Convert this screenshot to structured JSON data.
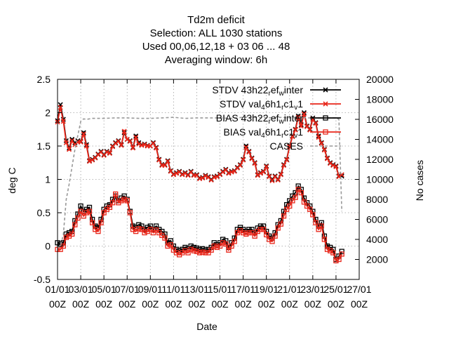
{
  "chart_data": {
    "type": "line",
    "title": "Td2m deficit",
    "subtitle_lines": [
      "Selection: ALL   1030 stations",
      "Used  00,06,12,18  + 03 06 ... 48",
      "Averaging window:  6h"
    ],
    "xlabel": "Date",
    "ylabel": "deg C",
    "y2label": "No cases",
    "xlim": [
      1,
      27
    ],
    "ylim": [
      -0.5,
      2.5
    ],
    "y2lim": [
      0,
      20000
    ],
    "xticks": [
      {
        "x": 1,
        "line1": "01/01",
        "line2": "00Z"
      },
      {
        "x": 3,
        "line1": "03/01",
        "line2": "00Z"
      },
      {
        "x": 5,
        "line1": "05/01",
        "line2": "00Z"
      },
      {
        "x": 7,
        "line1": "07/01",
        "line2": "00Z"
      },
      {
        "x": 9,
        "line1": "09/01",
        "line2": "00Z"
      },
      {
        "x": 11,
        "line1": "11/01",
        "line2": "00Z"
      },
      {
        "x": 13,
        "line1": "13/01",
        "line2": "00Z"
      },
      {
        "x": 15,
        "line1": "15/01",
        "line2": "00Z"
      },
      {
        "x": 17,
        "line1": "17/01",
        "line2": "00Z"
      },
      {
        "x": 19,
        "line1": "19/01",
        "line2": "00Z"
      },
      {
        "x": 21,
        "line1": "21/01",
        "line2": "00Z"
      },
      {
        "x": 23,
        "line1": "23/01",
        "line2": "00Z"
      },
      {
        "x": 25,
        "line1": "25/01",
        "line2": "00Z"
      },
      {
        "x": 27,
        "line1": "27/01",
        "line2": "00Z"
      }
    ],
    "yticks": [
      "-0.5",
      "0",
      "0.5",
      "1",
      "1.5",
      "2",
      "2.5"
    ],
    "y2ticks": [
      "2000",
      "4000",
      "6000",
      "8000",
      "10000",
      "12000",
      "14000",
      "16000",
      "18000",
      "20000"
    ],
    "grid": true,
    "legend_position": "top-right",
    "series": [
      {
        "name": "STDV 43h22_ref_winter",
        "name_parts": [
          [
            "t",
            "STDV 43h22"
          ],
          [
            "sub",
            "r"
          ],
          [
            "t",
            "ef"
          ],
          [
            "sub",
            "w"
          ],
          [
            "t",
            "inter"
          ]
        ],
        "axis": "y1",
        "color": "#000000",
        "marker": "x",
        "x": [
          1.0,
          1.25,
          1.5,
          1.75,
          2.0,
          2.25,
          2.5,
          2.75,
          3.0,
          3.25,
          3.5,
          3.75,
          4.0,
          4.25,
          4.5,
          4.75,
          5.0,
          5.25,
          5.5,
          5.75,
          6.0,
          6.25,
          6.5,
          6.75,
          7.0,
          7.25,
          7.5,
          7.75,
          8.0,
          8.25,
          8.5,
          8.75,
          9.0,
          9.25,
          9.5,
          9.75,
          10.0,
          10.25,
          10.5,
          10.75,
          11.0,
          11.25,
          11.5,
          11.75,
          12.0,
          12.25,
          12.5,
          12.75,
          13.0,
          13.25,
          13.5,
          13.75,
          14.0,
          14.25,
          14.5,
          14.75,
          15.0,
          15.25,
          15.5,
          15.75,
          16.0,
          16.25,
          16.5,
          16.75,
          17.0,
          17.25,
          17.5,
          17.75,
          18.0,
          18.25,
          18.5,
          18.75,
          19.0,
          19.25,
          19.5,
          19.75,
          20.0,
          20.25,
          20.5,
          20.75,
          21.0,
          21.25,
          21.5,
          21.75,
          22.0,
          22.25,
          22.5,
          22.75,
          23.0,
          23.25,
          23.5,
          23.75,
          24.0,
          24.25,
          24.5,
          24.75,
          25.0,
          25.25,
          25.5
        ],
        "values": [
          1.88,
          2.12,
          1.9,
          1.58,
          1.47,
          1.6,
          1.55,
          1.58,
          1.57,
          1.7,
          1.52,
          1.28,
          1.3,
          1.33,
          1.38,
          1.42,
          1.37,
          1.42,
          1.4,
          1.5,
          1.55,
          1.58,
          1.52,
          1.7,
          1.6,
          1.58,
          1.48,
          1.65,
          1.55,
          1.52,
          1.53,
          1.51,
          1.5,
          1.55,
          1.48,
          1.3,
          1.22,
          1.22,
          1.28,
          1.13,
          1.08,
          1.1,
          1.12,
          1.08,
          1.1,
          1.07,
          1.12,
          1.07,
          1.07,
          1.02,
          1.03,
          1.06,
          1.04,
          1.0,
          1.04,
          1.05,
          1.08,
          1.12,
          1.15,
          1.1,
          1.12,
          1.13,
          1.18,
          1.22,
          1.3,
          1.5,
          1.42,
          1.32,
          1.25,
          1.07,
          1.1,
          1.12,
          1.2,
          1.05,
          1.0,
          1.05,
          1.0,
          1.08,
          1.22,
          1.3,
          1.5,
          1.65,
          1.75,
          1.95,
          1.82,
          2.0,
          1.8,
          1.75,
          1.92,
          1.85,
          1.65,
          1.55,
          1.45,
          1.32,
          1.25,
          1.22,
          1.2,
          1.05,
          1.05
        ]
      },
      {
        "name": "STDV val_46h1_rc1_v1",
        "name_parts": [
          [
            "t",
            "STDV val"
          ],
          [
            "sub",
            "4"
          ],
          [
            "t",
            "6h1"
          ],
          [
            "sub",
            "r"
          ],
          [
            "t",
            "c1"
          ],
          [
            "sub",
            "v"
          ],
          [
            "t",
            "1"
          ]
        ],
        "axis": "y1",
        "color": "#e8261a",
        "marker": "x",
        "x": [
          1.0,
          1.25,
          1.5,
          1.75,
          2.0,
          2.25,
          2.5,
          2.75,
          3.0,
          3.25,
          3.5,
          3.75,
          4.0,
          4.25,
          4.5,
          4.75,
          5.0,
          5.25,
          5.5,
          5.75,
          6.0,
          6.25,
          6.5,
          6.75,
          7.0,
          7.25,
          7.5,
          7.75,
          8.0,
          8.25,
          8.5,
          8.75,
          9.0,
          9.25,
          9.5,
          9.75,
          10.0,
          10.25,
          10.5,
          10.75,
          11.0,
          11.25,
          11.5,
          11.75,
          12.0,
          12.25,
          12.5,
          12.75,
          13.0,
          13.25,
          13.5,
          13.75,
          14.0,
          14.25,
          14.5,
          14.75,
          15.0,
          15.25,
          15.5,
          15.75,
          16.0,
          16.25,
          16.5,
          16.75,
          17.0,
          17.25,
          17.5,
          17.75,
          18.0,
          18.25,
          18.5,
          18.75,
          19.0,
          19.25,
          19.5,
          19.75,
          20.0,
          20.25,
          20.5,
          20.75,
          21.0,
          21.25,
          21.5,
          21.75,
          22.0,
          22.25,
          22.5,
          22.75,
          23.0,
          23.25,
          23.5,
          23.75,
          24.0,
          24.25,
          24.5,
          24.75,
          25.0,
          25.25,
          25.5
        ],
        "values": [
          1.86,
          2.08,
          1.87,
          1.55,
          1.45,
          1.58,
          1.52,
          1.56,
          1.56,
          1.68,
          1.5,
          1.27,
          1.29,
          1.32,
          1.37,
          1.41,
          1.36,
          1.41,
          1.39,
          1.49,
          1.54,
          1.57,
          1.51,
          1.72,
          1.6,
          1.57,
          1.47,
          1.63,
          1.53,
          1.51,
          1.52,
          1.5,
          1.5,
          1.54,
          1.47,
          1.29,
          1.21,
          1.21,
          1.27,
          1.12,
          1.07,
          1.09,
          1.11,
          1.07,
          1.09,
          1.06,
          1.11,
          1.06,
          1.06,
          1.01,
          1.02,
          1.05,
          1.03,
          0.99,
          1.03,
          1.04,
          1.07,
          1.11,
          1.14,
          1.09,
          1.11,
          1.12,
          1.17,
          1.21,
          1.29,
          1.48,
          1.41,
          1.31,
          1.24,
          1.06,
          1.09,
          1.11,
          1.19,
          1.04,
          0.98,
          1.04,
          0.99,
          1.07,
          1.21,
          1.29,
          1.49,
          1.64,
          1.74,
          1.93,
          1.8,
          1.98,
          1.79,
          1.74,
          1.9,
          1.84,
          1.63,
          1.54,
          1.44,
          1.31,
          1.24,
          1.21,
          1.19,
          1.04,
          1.07
        ]
      },
      {
        "name": "BIAS 43h22_ref_winter",
        "name_parts": [
          [
            "t",
            "BIAS 43h22"
          ],
          [
            "sub",
            "r"
          ],
          [
            "t",
            "ef"
          ],
          [
            "sub",
            "w"
          ],
          [
            "t",
            "inter"
          ]
        ],
        "axis": "y1",
        "color": "#000000",
        "marker": "square",
        "x": [
          1.0,
          1.25,
          1.5,
          1.75,
          2.0,
          2.25,
          2.5,
          2.75,
          3.0,
          3.25,
          3.5,
          3.75,
          4.0,
          4.25,
          4.5,
          4.75,
          5.0,
          5.25,
          5.5,
          5.75,
          6.0,
          6.25,
          6.5,
          6.75,
          7.0,
          7.25,
          7.5,
          7.75,
          8.0,
          8.25,
          8.5,
          8.75,
          9.0,
          9.25,
          9.5,
          9.75,
          10.0,
          10.25,
          10.5,
          10.75,
          11.0,
          11.25,
          11.5,
          11.75,
          12.0,
          12.25,
          12.5,
          12.75,
          13.0,
          13.25,
          13.5,
          13.75,
          14.0,
          14.25,
          14.5,
          14.75,
          15.0,
          15.25,
          15.5,
          15.75,
          16.0,
          16.25,
          16.5,
          16.75,
          17.0,
          17.25,
          17.5,
          17.75,
          18.0,
          18.25,
          18.5,
          18.75,
          19.0,
          19.25,
          19.5,
          19.75,
          20.0,
          20.25,
          20.5,
          20.75,
          21.0,
          21.25,
          21.5,
          21.75,
          22.0,
          22.25,
          22.5,
          22.75,
          23.0,
          23.25,
          23.5,
          23.75,
          24.0,
          24.25,
          24.5,
          24.75,
          25.0,
          25.25,
          25.5
        ],
        "values": [
          0.05,
          0.03,
          0.05,
          0.18,
          0.2,
          0.22,
          0.38,
          0.48,
          0.6,
          0.52,
          0.55,
          0.58,
          0.4,
          0.3,
          0.28,
          0.4,
          0.55,
          0.6,
          0.62,
          0.7,
          0.75,
          0.68,
          0.72,
          0.75,
          0.7,
          0.52,
          0.3,
          0.28,
          0.32,
          0.3,
          0.25,
          0.28,
          0.3,
          0.25,
          0.3,
          0.25,
          0.22,
          0.18,
          0.05,
          0.08,
          0.0,
          -0.05,
          -0.07,
          -0.05,
          -0.02,
          -0.04,
          0.0,
          -0.02,
          -0.03,
          -0.05,
          -0.04,
          -0.06,
          -0.05,
          -0.02,
          0.05,
          0.02,
          0.05,
          0.1,
          0.08,
          -0.02,
          0.05,
          0.12,
          0.25,
          0.28,
          0.25,
          0.22,
          0.25,
          0.25,
          0.2,
          0.27,
          0.3,
          0.3,
          0.22,
          0.15,
          0.12,
          0.2,
          0.32,
          0.38,
          0.52,
          0.62,
          0.68,
          0.75,
          0.8,
          0.9,
          0.85,
          0.72,
          0.65,
          0.6,
          0.52,
          0.4,
          0.3,
          0.35,
          0.15,
          0.0,
          -0.02,
          -0.05,
          -0.2,
          -0.15,
          -0.08
        ]
      },
      {
        "name": "BIAS val_46h1_rc1_v1",
        "name_parts": [
          [
            "t",
            "BIAS val"
          ],
          [
            "sub",
            "4"
          ],
          [
            "t",
            "6h1"
          ],
          [
            "sub",
            "r"
          ],
          [
            "t",
            "c1"
          ],
          [
            "sub",
            "v"
          ],
          [
            "t",
            "1"
          ]
        ],
        "axis": "y1",
        "color": "#e8261a",
        "marker": "square",
        "x": [
          1.0,
          1.25,
          1.5,
          1.75,
          2.0,
          2.25,
          2.5,
          2.75,
          3.0,
          3.25,
          3.5,
          3.75,
          4.0,
          4.25,
          4.5,
          4.75,
          5.0,
          5.25,
          5.5,
          5.75,
          6.0,
          6.25,
          6.5,
          6.75,
          7.0,
          7.25,
          7.5,
          7.75,
          8.0,
          8.25,
          8.5,
          8.75,
          9.0,
          9.25,
          9.5,
          9.75,
          10.0,
          10.25,
          10.5,
          10.75,
          11.0,
          11.25,
          11.5,
          11.75,
          12.0,
          12.25,
          12.5,
          12.75,
          13.0,
          13.25,
          13.5,
          13.75,
          14.0,
          14.25,
          14.5,
          14.75,
          15.0,
          15.25,
          15.5,
          15.75,
          16.0,
          16.25,
          16.5,
          16.75,
          17.0,
          17.25,
          17.5,
          17.75,
          18.0,
          18.25,
          18.5,
          18.75,
          19.0,
          19.25,
          19.5,
          19.75,
          20.0,
          20.25,
          20.5,
          20.75,
          21.0,
          21.25,
          21.5,
          21.75,
          22.0,
          22.25,
          22.5,
          22.75,
          23.0,
          23.25,
          23.5,
          23.75,
          24.0,
          24.25,
          24.5,
          24.75,
          25.0,
          25.25,
          25.5
        ],
        "values": [
          -0.05,
          -0.05,
          0.0,
          0.13,
          0.15,
          0.18,
          0.32,
          0.42,
          0.52,
          0.45,
          0.5,
          0.52,
          0.35,
          0.25,
          0.22,
          0.35,
          0.5,
          0.55,
          0.58,
          0.65,
          0.78,
          0.65,
          0.68,
          0.7,
          0.68,
          0.5,
          0.25,
          0.22,
          0.26,
          0.25,
          0.2,
          0.22,
          0.25,
          0.2,
          0.24,
          0.2,
          0.16,
          0.12,
          0.0,
          0.02,
          -0.06,
          -0.1,
          -0.13,
          -0.1,
          -0.07,
          -0.1,
          -0.05,
          -0.07,
          -0.08,
          -0.1,
          -0.09,
          -0.1,
          -0.1,
          -0.06,
          0.0,
          -0.02,
          0.0,
          0.05,
          0.03,
          -0.06,
          0.0,
          0.07,
          0.2,
          0.23,
          0.2,
          0.18,
          0.2,
          0.2,
          0.15,
          0.22,
          0.25,
          0.25,
          0.17,
          0.1,
          0.07,
          0.15,
          0.27,
          0.33,
          0.45,
          0.55,
          0.6,
          0.68,
          0.73,
          0.85,
          0.8,
          0.66,
          0.6,
          0.55,
          0.47,
          0.35,
          0.25,
          0.3,
          0.1,
          -0.05,
          -0.07,
          -0.1,
          -0.22,
          -0.2,
          -0.12
        ]
      },
      {
        "name": "CASES",
        "name_parts": [
          [
            "t",
            "CASES"
          ]
        ],
        "axis": "y2",
        "color": "#999999",
        "marker": "none",
        "dashed": true,
        "x": [
          1.0,
          1.25,
          1.5,
          1.75,
          2.0,
          2.5,
          3.0,
          3.25,
          3.5,
          4.0,
          5.0,
          6.0,
          7.0,
          8.0,
          9.0,
          10.0,
          11.0,
          12.0,
          13.0,
          14.0,
          15.0,
          16.0,
          17.0,
          18.0,
          19.0,
          20.0,
          21.0,
          22.0,
          22.5,
          23.0,
          24.0,
          24.5,
          25.0,
          25.25,
          25.5
        ],
        "values": [
          3200,
          3300,
          4500,
          8000,
          9500,
          13000,
          15800,
          16050,
          16000,
          16100,
          16100,
          16150,
          16150,
          16100,
          16100,
          16150,
          16200,
          16100,
          16150,
          16150,
          16150,
          16100,
          16200,
          16200,
          16150,
          16200,
          16150,
          16200,
          16150,
          16150,
          16150,
          16150,
          16150,
          16000,
          6800
        ]
      }
    ]
  }
}
